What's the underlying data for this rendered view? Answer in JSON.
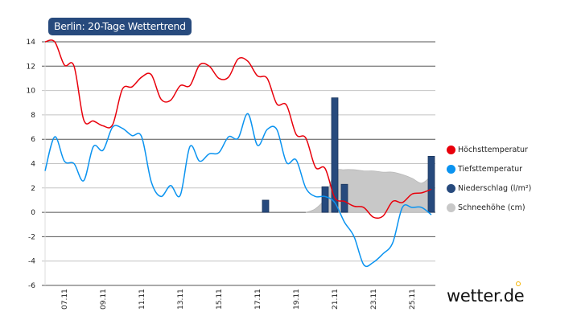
{
  "chart_data": {
    "type": "line",
    "title": "Berlin: 20-Tage Wettertrend",
    "ylim": [
      -6,
      14
    ],
    "yticks": [
      -6,
      -4,
      -2,
      0,
      2,
      4,
      6,
      8,
      10,
      12,
      14
    ],
    "xlim": [
      "06.11 00:00",
      "26.11 04:00"
    ],
    "xticks": [
      "07.11",
      "09.11",
      "11.11",
      "13.11",
      "15.11",
      "17.11",
      "19.11",
      "21.11",
      "23.11",
      "25.11"
    ],
    "grid": true,
    "legend_position": "right",
    "times": [
      "06.11 00:00",
      "06.11 12:00",
      "07.11 00:00",
      "07.11 12:00",
      "08.11 00:00",
      "08.11 12:00",
      "09.11 00:00",
      "09.11 12:00",
      "10.11 00:00",
      "10.11 12:00",
      "11.11 00:00",
      "11.11 12:00",
      "12.11 00:00",
      "12.11 12:00",
      "13.11 00:00",
      "13.11 12:00",
      "14.11 00:00",
      "14.11 12:00",
      "15.11 00:00",
      "15.11 12:00",
      "16.11 00:00",
      "16.11 12:00",
      "17.11 00:00",
      "17.11 12:00",
      "18.11 00:00",
      "18.11 12:00",
      "19.11 00:00",
      "19.11 12:00",
      "20.11 00:00",
      "20.11 12:00",
      "21.11 00:00",
      "21.11 12:00",
      "22.11 00:00",
      "22.11 12:00",
      "23.11 00:00",
      "23.11 12:00",
      "24.11 00:00",
      "24.11 12:00",
      "25.11 00:00",
      "25.11 12:00",
      "26.11 00:00"
    ],
    "series": [
      {
        "name": "Höchsttemperatur",
        "color": "#e8000b",
        "values": [
          14.0,
          14.0,
          12.1,
          12.0,
          7.6,
          7.5,
          7.1,
          7.2,
          10.1,
          10.3,
          11.1,
          11.3,
          9.3,
          9.2,
          10.4,
          10.4,
          12.1,
          12.0,
          11.0,
          11.1,
          12.6,
          12.4,
          11.2,
          11.0,
          8.9,
          8.8,
          6.4,
          6.1,
          3.7,
          3.6,
          1.2,
          0.9,
          0.5,
          0.4,
          -0.4,
          -0.3,
          0.9,
          0.8,
          1.5,
          1.6,
          1.9
        ]
      },
      {
        "name": "Tiefsttemperatur",
        "color": "#0a93f0",
        "values": [
          3.4,
          6.2,
          4.2,
          4.0,
          2.6,
          5.4,
          5.1,
          7.0,
          6.9,
          6.3,
          6.2,
          2.5,
          1.3,
          2.2,
          1.4,
          5.4,
          4.2,
          4.8,
          4.9,
          6.2,
          6.1,
          8.1,
          5.5,
          6.8,
          6.8,
          4.1,
          4.3,
          2.0,
          1.3,
          1.3,
          0.8,
          -0.8,
          -2.0,
          -4.3,
          -4.1,
          -3.4,
          -2.5,
          0.4,
          0.4,
          0.4,
          -0.2
        ]
      }
    ],
    "precipitation": {
      "name": "Niederschlag (l/m²)",
      "color": "#274a7d",
      "points": [
        [
          "17.11 10:00",
          1.0
        ],
        [
          "20.11 12:00",
          2.1
        ],
        [
          "21.11 00:00",
          9.4
        ],
        [
          "21.11 12:00",
          2.3
        ],
        [
          "26.11 00:00",
          4.6
        ]
      ]
    },
    "snow": {
      "name": "Schneehöhe (cm)",
      "color": "#c8c8c8",
      "points": [
        [
          "19.11 12:00",
          0
        ],
        [
          "20.11 00:00",
          0.3
        ],
        [
          "20.11 12:00",
          1.2
        ],
        [
          "21.11 00:00",
          3.3
        ],
        [
          "21.11 12:00",
          3.5
        ],
        [
          "22.11 00:00",
          3.5
        ],
        [
          "22.11 12:00",
          3.4
        ],
        [
          "23.11 00:00",
          3.4
        ],
        [
          "23.11 12:00",
          3.3
        ],
        [
          "24.11 00:00",
          3.3
        ],
        [
          "24.11 12:00",
          3.1
        ],
        [
          "25.11 00:00",
          2.8
        ],
        [
          "25.11 12:00",
          2.4
        ],
        [
          "26.11 00:00",
          3.0
        ]
      ]
    }
  },
  "legend": [
    {
      "label": "Höchsttemperatur",
      "color": "#e8000b"
    },
    {
      "label": "Tiefsttemperatur",
      "color": "#0a93f0"
    },
    {
      "label": "Niederschlag (l/m²)",
      "color": "#274a7d"
    },
    {
      "label": "Schneehöhe (cm)",
      "color": "#c8c8c8"
    }
  ],
  "logo": "wetter.de"
}
